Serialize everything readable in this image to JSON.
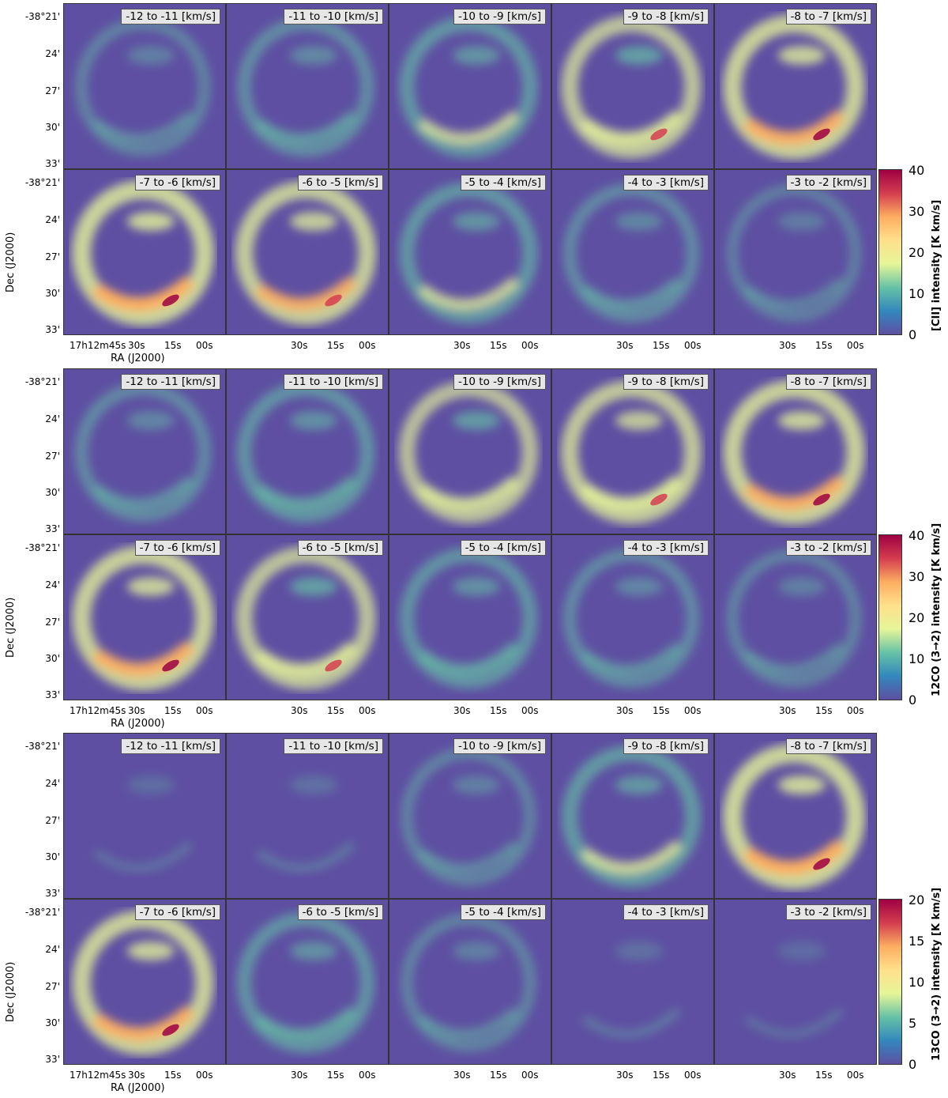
{
  "panel_labels": [
    "-12 to -11 [km/s]",
    "-11 to -10 [km/s]",
    "-10 to -9 [km/s]",
    "-9 to -8 [km/s]",
    "-8 to -7 [km/s]",
    "-7 to -6 [km/s]",
    "-6 to -5 [km/s]",
    "-5 to -4 [km/s]",
    "-4 to -3 [km/s]",
    "-3 to -2 [km/s]"
  ],
  "dec_ticks": [
    "-38°21'",
    "24'",
    "27'",
    "30'",
    "33'"
  ],
  "ra_ticks": [
    "17h12m45s",
    "30s",
    "15s",
    "00s"
  ],
  "xlabel": "RA (J2000)",
  "ylabel": "Dec (J2000)",
  "colorbars": [
    {
      "label": "[CII] intensity [K km/s]",
      "ticks": [
        "0",
        "10",
        "20",
        "30",
        "40"
      ]
    },
    {
      "label": "12CO (3→2) intensity [K km/s]",
      "ticks": [
        "0",
        "10",
        "20",
        "30",
        "40"
      ]
    },
    {
      "label": "13CO (3→2) intensity [K km/s]",
      "ticks": [
        "0",
        "5",
        "10",
        "15",
        "20"
      ]
    }
  ],
  "colors": {
    "bg": "#5e4fa2",
    "low": "#3288bd",
    "mid": "#66c2a5",
    "midhi": "#e6f598",
    "high": "#fdae61",
    "peak": "#d53e4f",
    "max": "#9e0142"
  }
}
